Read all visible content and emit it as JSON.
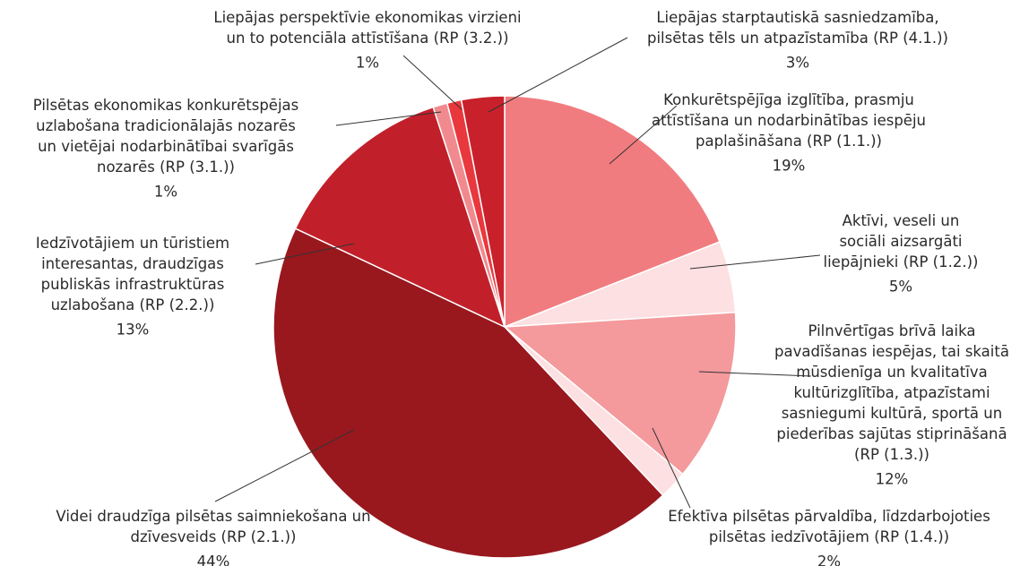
{
  "chart_data": {
    "type": "pie",
    "categories": [
      "Konkurētspējīga izglītība, prasmju attīstīšana un nodarbinātības iespēju paplašināšana (RP (1.1.))",
      "Aktīvi, veseli un sociāli aizsargāti liepājnieki (RP (1.2.))",
      "Pilnvērtīgas brīvā laika pavadīšanas iespējas, tai skaitā mūsdienīga un kvalitatīva kultūrizglītība, atpazīstami sasniegumi kultūrā, sportā un piederības sajūtas stiprināšanā (RP (1.3.))",
      "Efektīva pilsētas pārvaldība, līdzdarbojoties pilsētas iedzīvotājiem (RP (1.4.))",
      "Videi draudzīga pilsētas saimniekošana un dzīvesveids (RP (2.1.))",
      "Iedzīvotājiem un tūristiem interesantas, draudzīgas publiskās infrastruktūras uzlabošana (RP (2.2.))",
      "Pilsētas ekonomikas konkurētspējas uzlabošana tradicionālajās nozarēs un vietējai nodarbinātībai svarīgās nozarēs (RP (3.1.))",
      "Liepājas perspektīvie ekonomikas virzieni un to potenciāla attīstīšana (RP (3.2.))",
      "Liepājas starptautiskā sasniedzamība, pilsētas tēls un atpazīstamība (RP (4.1.))"
    ],
    "values": [
      19,
      5,
      12,
      2,
      44,
      13,
      1,
      1,
      3
    ],
    "value_labels": [
      "19%",
      "5%",
      "12%",
      "2%",
      "44%",
      "13%",
      "1%",
      "1%",
      "3%"
    ],
    "colors": [
      "#f17c7f",
      "#fde0e1",
      "#f4999c",
      "#fde0e1",
      "#98181e",
      "#c1202b",
      "#f08a8e",
      "#e9383d",
      "#c8212c"
    ]
  }
}
